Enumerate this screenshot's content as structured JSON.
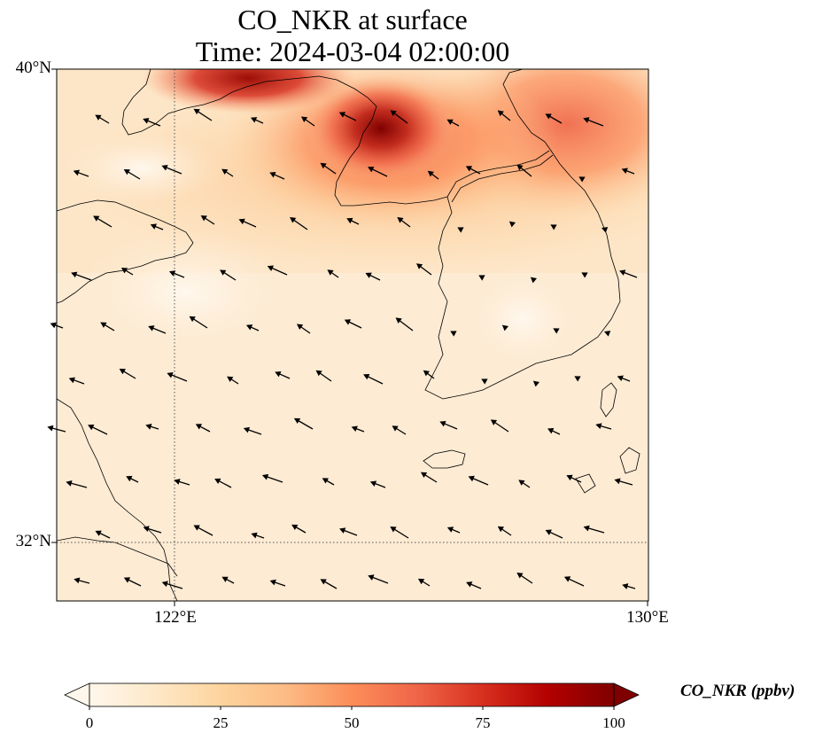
{
  "title": {
    "line1": "CO_NKR at surface",
    "line2": "Time: 2024-03-04 02:00:00"
  },
  "map": {
    "lat_ticks": [
      {
        "value": 40,
        "label": "40°N"
      },
      {
        "value": 32,
        "label": "32°N"
      }
    ],
    "lon_ticks": [
      {
        "value": 122,
        "label": "122°E"
      },
      {
        "value": 130,
        "label": "130°E"
      }
    ],
    "extent": {
      "lon": [
        120,
        130
      ],
      "lat": [
        31,
        40
      ]
    },
    "gridlines": "dotted at 122°E and 32°N",
    "features": [
      "coastlines",
      "wind-vectors",
      "CO concentration field"
    ],
    "hotspots": [
      {
        "name": "plume north-central",
        "lon": 125.5,
        "lat": 38.9,
        "value": 100
      },
      {
        "name": "plume north-west",
        "lon": 123.3,
        "lat": 39.9,
        "value": 95
      },
      {
        "name": "plume north-east",
        "lon": 128.5,
        "lat": 39.4,
        "value": 55
      }
    ]
  },
  "colorbar": {
    "label": "CO_NKR (ppbv)",
    "min": 0,
    "max": 100,
    "ticks": [
      {
        "value": 0,
        "label": "0"
      },
      {
        "value": 25,
        "label": "25"
      },
      {
        "value": 50,
        "label": "50"
      },
      {
        "value": 75,
        "label": "75"
      },
      {
        "value": 100,
        "label": "100"
      }
    ],
    "colormap": "OrRd",
    "extend": "both"
  }
}
